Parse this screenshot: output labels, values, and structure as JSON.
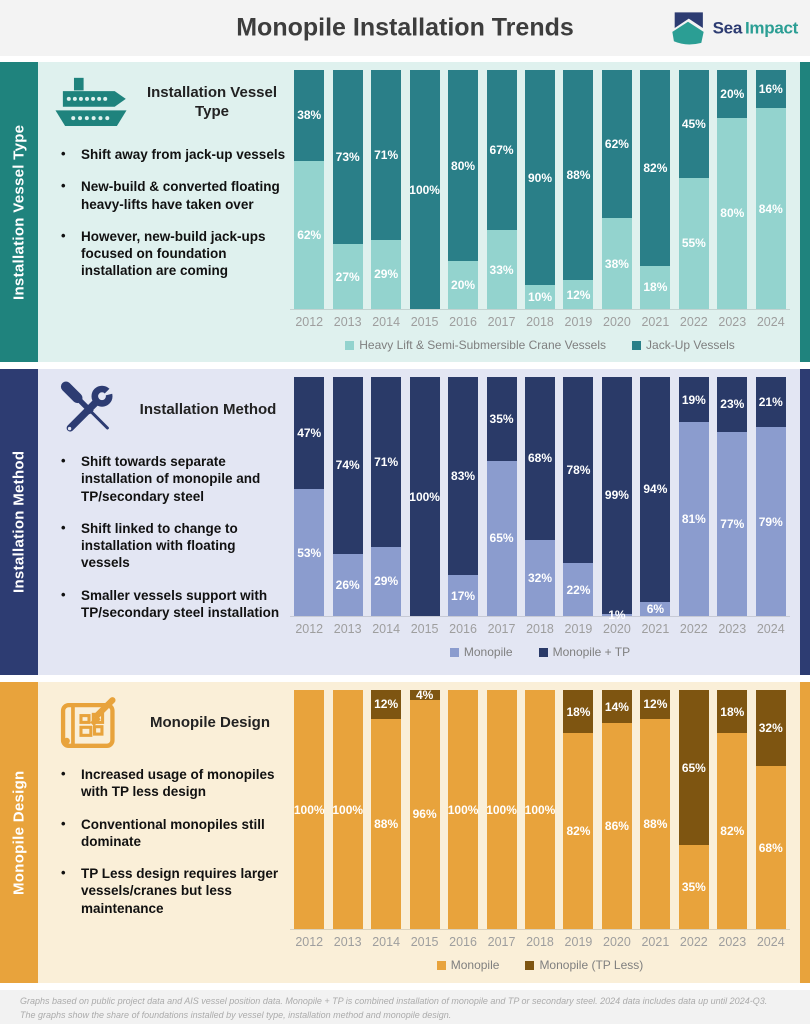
{
  "header": {
    "title": "Monopile Installation Trends",
    "logo": {
      "sea": "Sea",
      "impact": "Impact"
    }
  },
  "sections": [
    {
      "sidebar_label": "Installation Vessel Type",
      "title": "Installation Vessel Type",
      "icon": "ship-icon",
      "bullets": [
        "Shift away from jack-up vessels",
        "New-build & converted floating heavy-lifts have taken over",
        "However, new-build jack-ups focused on foundation installation are coming"
      ],
      "colors": {
        "accent": "#1F837D",
        "panel": "#DFF1EE"
      }
    },
    {
      "sidebar_label": "Installation Method",
      "title": "Installation Method",
      "icon": "tools-icon",
      "bullets": [
        "Shift towards separate installation of monopile and TP/secondary steel",
        "Shift linked to change to installation with floating vessels",
        "Smaller vessels support with TP/secondary steel installation"
      ],
      "colors": {
        "accent": "#2D3C72",
        "panel": "#E3E6F3"
      }
    },
    {
      "sidebar_label": "Monopile Design",
      "title": "Monopile Design",
      "icon": "blueprint-icon",
      "bullets": [
        "Increased usage of monopiles with TP less design",
        "Conventional monopiles still dominate",
        "TP Less design requires larger vessels/cranes but less maintenance"
      ],
      "colors": {
        "accent": "#E8A33C",
        "panel": "#FAEFD8"
      }
    }
  ],
  "chart_data": [
    {
      "type": "bar",
      "stacked": true,
      "title": "Installation Vessel Type",
      "categories": [
        "2012",
        "2013",
        "2014",
        "2015",
        "2016",
        "2017",
        "2018",
        "2019",
        "2020",
        "2021",
        "2022",
        "2023",
        "2024"
      ],
      "series": [
        {
          "name": "Heavy Lift & Semi-Submersible Crane Vessels",
          "color": "#93D3CE",
          "values": [
            62,
            27,
            29,
            0,
            20,
            33,
            10,
            12,
            38,
            18,
            55,
            80,
            84
          ]
        },
        {
          "name": "Jack-Up Vessels",
          "color": "#2A7F88",
          "values": [
            38,
            73,
            71,
            100,
            80,
            67,
            90,
            88,
            62,
            82,
            45,
            20,
            16
          ]
        }
      ],
      "value_format": "percent",
      "ylim": [
        0,
        100
      ],
      "grid": false,
      "legend_position": "bottom"
    },
    {
      "type": "bar",
      "stacked": true,
      "title": "Installation Method",
      "categories": [
        "2012",
        "2013",
        "2014",
        "2015",
        "2016",
        "2017",
        "2018",
        "2019",
        "2020",
        "2021",
        "2022",
        "2023",
        "2024"
      ],
      "series": [
        {
          "name": "Monopile",
          "color": "#8B9CCE",
          "values": [
            53,
            26,
            29,
            0,
            17,
            65,
            32,
            22,
            1,
            6,
            81,
            77,
            79
          ]
        },
        {
          "name": "Monopile + TP",
          "color": "#2A3A68",
          "values": [
            47,
            74,
            71,
            100,
            83,
            35,
            68,
            78,
            99,
            94,
            19,
            23,
            21
          ]
        }
      ],
      "value_format": "percent",
      "ylim": [
        0,
        100
      ],
      "grid": false,
      "legend_position": "bottom"
    },
    {
      "type": "bar",
      "stacked": true,
      "title": "Monopile Design",
      "categories": [
        "2012",
        "2013",
        "2014",
        "2015",
        "2016",
        "2017",
        "2018",
        "2019",
        "2020",
        "2021",
        "2022",
        "2023",
        "2024"
      ],
      "series": [
        {
          "name": "Monopile",
          "color": "#E8A33C",
          "values": [
            100,
            100,
            88,
            96,
            100,
            100,
            100,
            82,
            86,
            88,
            35,
            82,
            68
          ]
        },
        {
          "name": "Monopile (TP Less)",
          "color": "#7E5511",
          "values": [
            0,
            0,
            12,
            4,
            0,
            0,
            0,
            18,
            14,
            12,
            65,
            18,
            32
          ]
        }
      ],
      "value_format": "percent",
      "ylim": [
        0,
        100
      ],
      "grid": false,
      "legend_position": "bottom"
    }
  ],
  "footer": {
    "line1": "Graphs based on public project data and AIS vessel position data. Monopile + TP is combined installation of monopile and TP or secondary steel. 2024 data includes data up until 2024-Q3.",
    "line2": "The graphs show the share of foundations installed by vessel type, installation method and monopile design."
  }
}
